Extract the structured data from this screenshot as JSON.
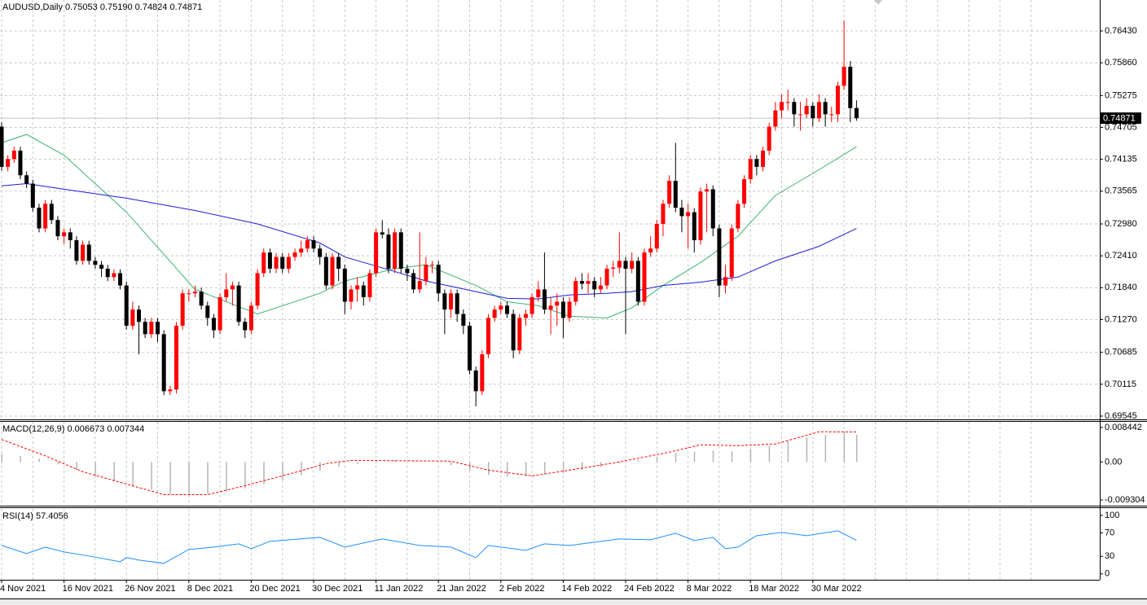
{
  "chart_data": [
    {
      "type": "candlestick",
      "title": "AUDUSD,Daily  0.75053 0.75190 0.74824 0.74871",
      "categories": [
        "4 Nov 2021",
        null,
        null,
        null,
        null,
        null,
        null,
        null,
        null,
        null,
        "16 Nov 2021",
        null,
        null,
        null,
        null,
        null,
        null,
        null,
        null,
        null,
        "26 Nov 2021",
        null,
        null,
        null,
        null,
        null,
        null,
        null,
        null,
        null,
        "8 Dec 2021",
        null,
        null,
        null,
        null,
        null,
        null,
        null,
        null,
        null,
        "20 Dec 2021",
        null,
        null,
        null,
        null,
        null,
        null,
        null,
        null,
        null,
        "30 Dec 2021",
        null,
        null,
        null,
        null,
        null,
        null,
        null,
        null,
        null,
        "11 Jan 2022",
        null,
        null,
        null,
        null,
        null,
        null,
        null,
        null,
        null,
        "21 Jan 2022",
        null,
        null,
        null,
        null,
        null,
        null,
        null,
        null,
        null,
        "2 Feb 2022",
        null,
        null,
        null,
        null,
        null,
        null,
        null,
        null,
        null,
        "14 Feb 2022",
        null,
        null,
        null,
        null,
        null,
        null,
        null,
        null,
        null,
        "24 Feb 2022",
        null,
        null,
        null,
        null,
        null,
        null,
        null,
        null,
        null,
        "8 Mar 2022",
        null,
        null,
        null,
        null,
        null,
        null,
        null,
        null,
        null,
        "18 Mar 2022",
        null,
        null,
        null,
        null,
        null,
        null,
        null,
        null,
        null,
        "30 Mar 2022",
        null,
        null,
        null,
        null,
        null,
        null,
        null
      ],
      "open": [
        0.7472,
        0.74,
        0.7414,
        0.7429,
        0.7385,
        0.737,
        0.7327,
        0.729,
        0.7334,
        0.7305,
        0.7276,
        0.7283,
        0.7269,
        0.7232,
        0.7261,
        0.7232,
        0.7225,
        0.7218,
        0.7203,
        0.721,
        0.7188,
        0.7116,
        0.7145,
        0.7123,
        0.7101,
        0.7123,
        0.7101,
        0.6999,
        0.7002,
        0.7116,
        0.7174,
        0.7174,
        0.7177,
        0.7152,
        0.713,
        0.7108,
        0.7167,
        0.7181,
        0.7188,
        0.7123,
        0.7108,
        0.7152,
        0.721,
        0.7247,
        0.7218,
        0.7239,
        0.7218,
        0.7239,
        0.7247,
        0.7254,
        0.7269,
        0.7254,
        0.7239,
        0.7188,
        0.7239,
        0.7218,
        0.7159,
        0.7181,
        0.7188,
        0.7167,
        0.721,
        0.7283,
        0.7279,
        0.7218,
        0.7283,
        0.7218,
        0.721,
        0.7181,
        0.7196,
        0.7225,
        0.7225,
        0.7174,
        0.7145,
        0.7174,
        0.7137,
        0.7116,
        0.7036,
        0.6999,
        0.7065,
        0.713,
        0.7145,
        0.7152,
        0.7137,
        0.7072,
        0.713,
        0.7137,
        0.7167,
        0.7181,
        0.7145,
        0.7152,
        0.7159,
        0.713,
        0.7159,
        0.7196,
        0.7191,
        0.7196,
        0.7181,
        0.7188,
        0.7218,
        0.722,
        0.7232,
        0.7218,
        0.7232,
        0.7159,
        0.7247,
        0.7254,
        0.7298,
        0.7334,
        0.7375,
        0.7327,
        0.7312,
        0.7319,
        0.7269,
        0.7356,
        0.736,
        0.729,
        0.7188,
        0.7203,
        0.729,
        0.7334,
        0.7378,
        0.7414,
        0.74,
        0.7429,
        0.7472,
        0.7501,
        0.7516,
        0.7516,
        0.7494,
        0.7494,
        0.7509,
        0.7487,
        0.7516,
        0.7494,
        0.7494,
        0.7545,
        0.7579,
        0.75053
      ],
      "high": [
        0.748,
        0.7421,
        0.7436,
        0.7436,
        0.7392,
        0.7377,
        0.7334,
        0.7341,
        0.7341,
        0.7312,
        0.729,
        0.729,
        0.7276,
        0.7268,
        0.7268,
        0.7239,
        0.7232,
        0.7225,
        0.7217,
        0.7217,
        0.7195,
        0.7159,
        0.7152,
        0.713,
        0.713,
        0.713,
        0.7108,
        0.7009,
        0.7123,
        0.7181,
        0.7181,
        0.7188,
        0.7184,
        0.7159,
        0.7137,
        0.7174,
        0.721,
        0.7195,
        0.7195,
        0.713,
        0.7159,
        0.7217,
        0.7254,
        0.7254,
        0.7246,
        0.7246,
        0.7246,
        0.7254,
        0.7268,
        0.7276,
        0.7276,
        0.7261,
        0.7246,
        0.7246,
        0.7246,
        0.7225,
        0.7188,
        0.7203,
        0.7195,
        0.7217,
        0.729,
        0.7305,
        0.729,
        0.729,
        0.729,
        0.7225,
        0.7217,
        0.7283,
        0.7239,
        0.7232,
        0.7232,
        0.7181,
        0.7181,
        0.7181,
        0.7145,
        0.7123,
        0.7043,
        0.7072,
        0.7137,
        0.7152,
        0.7159,
        0.7159,
        0.7145,
        0.7137,
        0.7145,
        0.7174,
        0.7196,
        0.7247,
        0.7167,
        0.7174,
        0.7167,
        0.7167,
        0.7203,
        0.721,
        0.721,
        0.7203,
        0.7203,
        0.7225,
        0.7232,
        0.7283,
        0.7239,
        0.7247,
        0.7239,
        0.7254,
        0.7276,
        0.7305,
        0.7341,
        0.7385,
        0.7443,
        0.7341,
        0.7334,
        0.7326,
        0.7363,
        0.737,
        0.7367,
        0.7297,
        0.7225,
        0.7297,
        0.7341,
        0.7385,
        0.7421,
        0.7421,
        0.7436,
        0.7479,
        0.7516,
        0.753,
        0.7538,
        0.7523,
        0.7516,
        0.7523,
        0.7516,
        0.753,
        0.7523,
        0.7508,
        0.7552,
        0.7661,
        0.7589,
        0.7519
      ],
      "low": [
        0.7393,
        0.7392,
        0.7407,
        0.7378,
        0.7362,
        0.732,
        0.7283,
        0.7283,
        0.7298,
        0.7269,
        0.7262,
        0.7254,
        0.7225,
        0.7225,
        0.7225,
        0.7218,
        0.7203,
        0.7196,
        0.7196,
        0.7181,
        0.7109,
        0.7109,
        0.7065,
        0.7094,
        0.7094,
        0.7087,
        0.6992,
        0.6992,
        0.6995,
        0.7109,
        0.7159,
        0.7167,
        0.7145,
        0.7116,
        0.7094,
        0.7101,
        0.7159,
        0.7152,
        0.7116,
        0.7094,
        0.7101,
        0.7145,
        0.7203,
        0.721,
        0.721,
        0.721,
        0.721,
        0.7232,
        0.7239,
        0.7247,
        0.7247,
        0.7225,
        0.7181,
        0.7181,
        0.7196,
        0.7137,
        0.7145,
        0.7159,
        0.7152,
        0.7159,
        0.7203,
        0.7272,
        0.721,
        0.721,
        0.721,
        0.7196,
        0.7174,
        0.7174,
        0.7188,
        0.721,
        0.7159,
        0.7101,
        0.713,
        0.7123,
        0.7101,
        0.7029,
        0.6972,
        0.6992,
        0.7058,
        0.7123,
        0.7137,
        0.713,
        0.7058,
        0.7065,
        0.7116,
        0.713,
        0.7159,
        0.7137,
        0.7101,
        0.7116,
        0.7094,
        0.7123,
        0.7152,
        0.7181,
        0.7174,
        0.7167,
        0.7174,
        0.7181,
        0.7203,
        0.721,
        0.7101,
        0.721,
        0.7152,
        0.7152,
        0.7239,
        0.7247,
        0.7276,
        0.7327,
        0.7319,
        0.7283,
        0.7254,
        0.7247,
        0.7261,
        0.7283,
        0.7276,
        0.7167,
        0.7174,
        0.7196,
        0.7283,
        0.7327,
        0.737,
        0.7385,
        0.7392,
        0.7421,
        0.7465,
        0.7487,
        0.7501,
        0.7472,
        0.7465,
        0.7487,
        0.7472,
        0.748,
        0.7472,
        0.748,
        0.748,
        0.7538,
        0.748,
        0.74824
      ],
      "close": [
        0.74,
        0.7414,
        0.7429,
        0.7385,
        0.737,
        0.7327,
        0.729,
        0.7334,
        0.7305,
        0.7276,
        0.7283,
        0.7269,
        0.7232,
        0.7261,
        0.7232,
        0.7225,
        0.7218,
        0.7203,
        0.721,
        0.7188,
        0.7116,
        0.7145,
        0.7123,
        0.7101,
        0.7123,
        0.7101,
        0.6999,
        0.7002,
        0.7116,
        0.7174,
        0.7174,
        0.7177,
        0.7152,
        0.713,
        0.7108,
        0.7167,
        0.7181,
        0.7188,
        0.7123,
        0.7108,
        0.7152,
        0.721,
        0.7247,
        0.7218,
        0.7239,
        0.7218,
        0.7239,
        0.7247,
        0.7254,
        0.7269,
        0.7254,
        0.7239,
        0.7188,
        0.7239,
        0.7218,
        0.7159,
        0.7181,
        0.7188,
        0.7167,
        0.721,
        0.7283,
        0.7279,
        0.7218,
        0.7283,
        0.7218,
        0.721,
        0.7181,
        0.7196,
        0.7225,
        0.7225,
        0.7174,
        0.7145,
        0.7174,
        0.7137,
        0.7116,
        0.7036,
        0.6999,
        0.7065,
        0.713,
        0.7145,
        0.7152,
        0.7137,
        0.7072,
        0.713,
        0.7137,
        0.7167,
        0.7181,
        0.7145,
        0.7152,
        0.7159,
        0.713,
        0.7159,
        0.7196,
        0.7191,
        0.7196,
        0.7181,
        0.7188,
        0.7218,
        0.722,
        0.7232,
        0.7218,
        0.7232,
        0.7159,
        0.7247,
        0.7254,
        0.7298,
        0.7334,
        0.7375,
        0.7327,
        0.7312,
        0.7319,
        0.7269,
        0.7356,
        0.736,
        0.729,
        0.7188,
        0.7203,
        0.729,
        0.7334,
        0.7378,
        0.7414,
        0.74,
        0.7429,
        0.7472,
        0.7501,
        0.7516,
        0.7516,
        0.7494,
        0.7494,
        0.7509,
        0.7487,
        0.7516,
        0.7494,
        0.7494,
        0.7545,
        0.7579,
        0.7505,
        0.74871
      ],
      "up_color": "#ff0000",
      "down_color": "#000000",
      "lines": [
        {
          "color": "#3cb371",
          "x": [
            0,
            4,
            10,
            20,
            31,
            41,
            51,
            55,
            63,
            68,
            76,
            81,
            86,
            91,
            97,
            101,
            106,
            112,
            118,
            124,
            131,
            137
          ],
          "values": [
            0.7443,
            0.7458,
            0.7421,
            0.7319,
            0.7181,
            0.7137,
            0.7174,
            0.7196,
            0.7218,
            0.7225,
            0.7188,
            0.7159,
            0.7152,
            0.7133,
            0.713,
            0.7148,
            0.7188,
            0.7229,
            0.7276,
            0.7349,
            0.7395,
            0.7436
          ]
        },
        {
          "color": "#1c1cd6",
          "x": [
            0,
            4,
            10,
            20,
            31,
            41,
            51,
            55,
            63,
            68,
            76,
            81,
            86,
            91,
            97,
            101,
            106,
            112,
            118,
            124,
            131,
            137
          ],
          "values": [
            0.7366,
            0.737,
            0.736,
            0.7344,
            0.7322,
            0.7298,
            0.7264,
            0.7239,
            0.7213,
            0.7196,
            0.7177,
            0.7165,
            0.7164,
            0.7171,
            0.7174,
            0.7177,
            0.7188,
            0.7194,
            0.7203,
            0.7232,
            0.7258,
            0.729
          ]
        }
      ],
      "last_price": 0.74871,
      "ylim": [
        0.69487,
        0.76983
      ],
      "yticks": [
        {
          "value": 0.7643,
          "label": "0.76430"
        },
        {
          "value": 0.7586,
          "label": "0.75860"
        },
        0.75275,
        0.74705,
        0.74135,
        0.73565,
        {
          "value": 0.7298,
          "label": "0.72980"
        },
        {
          "value": 0.7241,
          "label": "0.72410"
        },
        {
          "value": 0.7184,
          "label": "0.71840"
        },
        {
          "value": 0.7127,
          "label": "0.71270"
        },
        0.70685,
        0.70115,
        0.69545
      ],
      "grid": true
    },
    {
      "type": "macd",
      "title": "MACD(12,26,9) 0.006673 0.007344",
      "histogram": {
        "color": "#b4b4b4",
        "x": [
          0,
          3,
          6,
          9,
          12,
          15,
          18,
          21,
          24,
          27,
          30,
          33,
          36,
          39,
          42,
          45,
          48,
          51,
          54,
          57,
          60,
          63,
          66,
          69,
          72,
          75,
          78,
          81,
          84,
          87,
          90,
          93,
          96,
          99,
          102,
          105,
          108,
          111,
          114,
          117,
          120,
          123,
          126,
          129,
          132,
          135,
          137
        ],
        "values": [
          0.002,
          0.0015,
          0.0008,
          -0.0005,
          -0.002,
          -0.0035,
          -0.0048,
          -0.0058,
          -0.0068,
          -0.0078,
          -0.008,
          -0.0078,
          -0.0072,
          -0.0065,
          -0.0055,
          -0.0045,
          -0.0032,
          -0.0022,
          -0.0012,
          -0.0005,
          0.0002,
          0.0004,
          0.0002,
          0.0,
          -0.0008,
          -0.0022,
          -0.0032,
          -0.0036,
          -0.0035,
          -0.003,
          -0.0027,
          -0.002,
          -0.0012,
          -0.0003,
          0.0004,
          0.0012,
          0.0022,
          0.0025,
          0.0028,
          0.0026,
          0.0032,
          0.004,
          0.0052,
          0.006,
          0.0066,
          0.0074,
          0.006673
        ]
      },
      "signal": {
        "color": "#ff0000",
        "x": [
          0,
          7,
          13,
          20,
          26,
          33,
          39,
          46,
          52,
          56,
          72,
          78,
          85,
          91,
          99,
          107,
          112,
          118,
          124,
          131,
          137
        ],
        "values": [
          0.0055,
          0.0015,
          -0.0024,
          -0.0054,
          -0.008,
          -0.008,
          -0.0058,
          -0.003,
          -0.0004,
          0.0004,
          0.0002,
          -0.002,
          -0.0034,
          -0.002,
          0.0,
          0.0024,
          0.0042,
          0.004,
          0.0044,
          0.0074,
          0.007344
        ]
      },
      "ylim": [
        -0.0105,
        0.00984
      ],
      "yticks": [
        0.008442,
        {
          "value": 0,
          "label": "0.00"
        },
        -0.009304
      ],
      "grid": false
    },
    {
      "type": "line",
      "title": "RSI(14) 57.4056",
      "color": "#1e90ff",
      "x": [
        0,
        4,
        7,
        10,
        14,
        19,
        20,
        22,
        26,
        30,
        34,
        38,
        40,
        43,
        51,
        55,
        61,
        67,
        72,
        76,
        78,
        84,
        87,
        91,
        99,
        104,
        108,
        111,
        114,
        116,
        118,
        121,
        125,
        129,
        134,
        137
      ],
      "values": [
        48.6,
        34.7,
        45.8,
        37.5,
        30.6,
        20.8,
        27.8,
        23.6,
        18.1,
        41.7,
        45.8,
        51.4,
        43.1,
        55.6,
        62.5,
        45.8,
        59.7,
        48.6,
        45.8,
        27.8,
        48.6,
        40.3,
        51.4,
        48.6,
        59.7,
        58.3,
        69.4,
        56.9,
        62.5,
        43.1,
        45.8,
        65.3,
        70.8,
        65.3,
        73.6,
        57.4056
      ],
      "ylim": [
        -10,
        111
      ],
      "yticks": [
        100,
        70,
        30,
        0
      ],
      "grid": false
    }
  ]
}
